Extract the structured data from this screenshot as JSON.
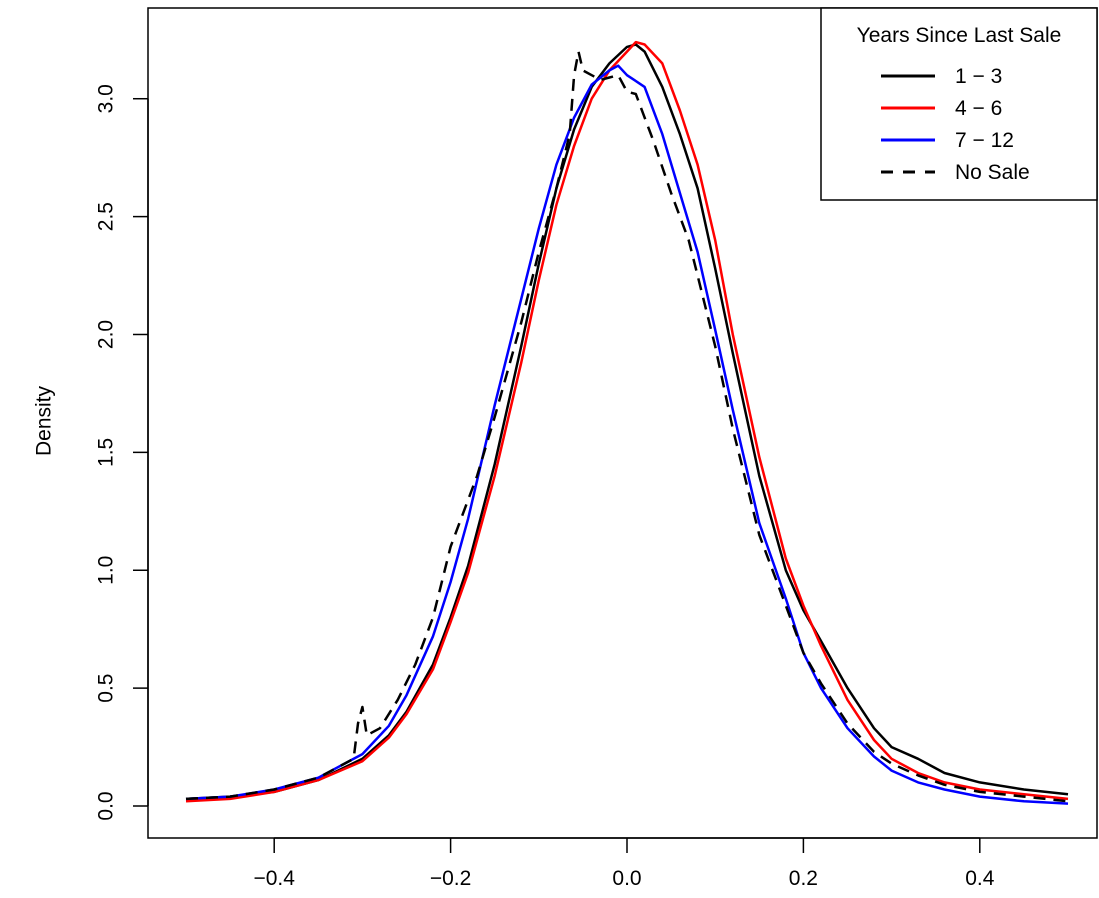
{
  "chart_data": {
    "type": "line",
    "title": "",
    "xlabel": "",
    "ylabel": "Density",
    "xlim": [
      -0.5,
      0.5
    ],
    "ylim": [
      0,
      3.3
    ],
    "x_ticks": [
      -0.4,
      -0.2,
      0.0,
      0.2,
      0.4
    ],
    "x_tick_labels": [
      "−0.4",
      "−0.2",
      "0.0",
      "0.2",
      "0.4"
    ],
    "y_ticks": [
      0.0,
      0.5,
      1.0,
      1.5,
      2.0,
      2.5,
      3.0
    ],
    "y_tick_labels": [
      "0.0",
      "0.5",
      "1.0",
      "1.5",
      "2.0",
      "2.5",
      "3.0"
    ],
    "grid": false,
    "legend": {
      "title": "Years Since Last Sale",
      "placement": "top-right"
    },
    "series": [
      {
        "name": "1 − 3",
        "color": "#000000",
        "dash": "solid",
        "points": [
          [
            -0.5,
            0.03
          ],
          [
            -0.45,
            0.04
          ],
          [
            -0.4,
            0.06
          ],
          [
            -0.35,
            0.11
          ],
          [
            -0.3,
            0.2
          ],
          [
            -0.27,
            0.3
          ],
          [
            -0.25,
            0.4
          ],
          [
            -0.22,
            0.6
          ],
          [
            -0.2,
            0.8
          ],
          [
            -0.18,
            1.02
          ],
          [
            -0.15,
            1.45
          ],
          [
            -0.12,
            1.95
          ],
          [
            -0.1,
            2.3
          ],
          [
            -0.08,
            2.62
          ],
          [
            -0.06,
            2.87
          ],
          [
            -0.04,
            3.05
          ],
          [
            -0.02,
            3.15
          ],
          [
            0.0,
            3.22
          ],
          [
            0.01,
            3.23
          ],
          [
            0.02,
            3.2
          ],
          [
            0.04,
            3.05
          ],
          [
            0.06,
            2.85
          ],
          [
            0.08,
            2.62
          ],
          [
            0.1,
            2.28
          ],
          [
            0.12,
            1.92
          ],
          [
            0.15,
            1.4
          ],
          [
            0.18,
            1.0
          ],
          [
            0.2,
            0.83
          ],
          [
            0.22,
            0.7
          ],
          [
            0.25,
            0.5
          ],
          [
            0.28,
            0.33
          ],
          [
            0.3,
            0.25
          ],
          [
            0.33,
            0.2
          ],
          [
            0.36,
            0.14
          ],
          [
            0.4,
            0.1
          ],
          [
            0.45,
            0.07
          ],
          [
            0.5,
            0.05
          ]
        ]
      },
      {
        "name": "4 − 6",
        "color": "#ff0000",
        "dash": "solid",
        "points": [
          [
            -0.5,
            0.02
          ],
          [
            -0.45,
            0.03
          ],
          [
            -0.4,
            0.06
          ],
          [
            -0.35,
            0.11
          ],
          [
            -0.3,
            0.19
          ],
          [
            -0.27,
            0.29
          ],
          [
            -0.25,
            0.39
          ],
          [
            -0.22,
            0.58
          ],
          [
            -0.2,
            0.78
          ],
          [
            -0.18,
            0.99
          ],
          [
            -0.15,
            1.4
          ],
          [
            -0.12,
            1.88
          ],
          [
            -0.1,
            2.23
          ],
          [
            -0.08,
            2.55
          ],
          [
            -0.06,
            2.8
          ],
          [
            -0.04,
            3.0
          ],
          [
            -0.02,
            3.12
          ],
          [
            0.0,
            3.2
          ],
          [
            0.01,
            3.24
          ],
          [
            0.02,
            3.23
          ],
          [
            0.04,
            3.15
          ],
          [
            0.06,
            2.95
          ],
          [
            0.08,
            2.72
          ],
          [
            0.1,
            2.4
          ],
          [
            0.12,
            2.0
          ],
          [
            0.15,
            1.48
          ],
          [
            0.18,
            1.05
          ],
          [
            0.2,
            0.85
          ],
          [
            0.22,
            0.68
          ],
          [
            0.25,
            0.45
          ],
          [
            0.28,
            0.28
          ],
          [
            0.3,
            0.2
          ],
          [
            0.33,
            0.14
          ],
          [
            0.36,
            0.1
          ],
          [
            0.4,
            0.07
          ],
          [
            0.45,
            0.05
          ],
          [
            0.5,
            0.03
          ]
        ]
      },
      {
        "name": "7 − 12",
        "color": "#0000ff",
        "dash": "solid",
        "points": [
          [
            -0.5,
            0.03
          ],
          [
            -0.45,
            0.04
          ],
          [
            -0.4,
            0.07
          ],
          [
            -0.35,
            0.12
          ],
          [
            -0.3,
            0.22
          ],
          [
            -0.27,
            0.34
          ],
          [
            -0.25,
            0.47
          ],
          [
            -0.22,
            0.72
          ],
          [
            -0.2,
            0.95
          ],
          [
            -0.18,
            1.22
          ],
          [
            -0.15,
            1.7
          ],
          [
            -0.12,
            2.15
          ],
          [
            -0.1,
            2.45
          ],
          [
            -0.08,
            2.72
          ],
          [
            -0.06,
            2.92
          ],
          [
            -0.04,
            3.06
          ],
          [
            -0.02,
            3.12
          ],
          [
            -0.01,
            3.14
          ],
          [
            0.0,
            3.1
          ],
          [
            0.02,
            3.05
          ],
          [
            0.04,
            2.85
          ],
          [
            0.06,
            2.6
          ],
          [
            0.08,
            2.35
          ],
          [
            0.1,
            2.02
          ],
          [
            0.12,
            1.68
          ],
          [
            0.15,
            1.2
          ],
          [
            0.18,
            0.88
          ],
          [
            0.2,
            0.65
          ],
          [
            0.22,
            0.5
          ],
          [
            0.25,
            0.33
          ],
          [
            0.28,
            0.21
          ],
          [
            0.3,
            0.15
          ],
          [
            0.33,
            0.1
          ],
          [
            0.36,
            0.07
          ],
          [
            0.4,
            0.04
          ],
          [
            0.45,
            0.02
          ],
          [
            0.5,
            0.01
          ]
        ]
      },
      {
        "name": "No Sale",
        "color": "#000000",
        "dash": "dashed",
        "points": [
          [
            -0.5,
            0.03
          ],
          [
            -0.45,
            0.04
          ],
          [
            -0.4,
            0.07
          ],
          [
            -0.35,
            0.12
          ],
          [
            -0.31,
            0.2
          ],
          [
            -0.305,
            0.35
          ],
          [
            -0.3,
            0.42
          ],
          [
            -0.295,
            0.3
          ],
          [
            -0.28,
            0.33
          ],
          [
            -0.26,
            0.45
          ],
          [
            -0.24,
            0.6
          ],
          [
            -0.22,
            0.8
          ],
          [
            -0.2,
            1.1
          ],
          [
            -0.19,
            1.2
          ],
          [
            -0.17,
            1.4
          ],
          [
            -0.15,
            1.65
          ],
          [
            -0.12,
            2.05
          ],
          [
            -0.1,
            2.35
          ],
          [
            -0.08,
            2.62
          ],
          [
            -0.065,
            2.85
          ],
          [
            -0.06,
            3.1
          ],
          [
            -0.055,
            3.2
          ],
          [
            -0.05,
            3.12
          ],
          [
            -0.04,
            3.1
          ],
          [
            -0.03,
            3.08
          ],
          [
            -0.02,
            3.09
          ],
          [
            -0.01,
            3.1
          ],
          [
            0.0,
            3.03
          ],
          [
            0.01,
            3.02
          ],
          [
            0.03,
            2.82
          ],
          [
            0.05,
            2.6
          ],
          [
            0.07,
            2.4
          ],
          [
            0.08,
            2.25
          ],
          [
            0.1,
            1.95
          ],
          [
            0.12,
            1.6
          ],
          [
            0.15,
            1.15
          ],
          [
            0.18,
            0.85
          ],
          [
            0.2,
            0.65
          ],
          [
            0.22,
            0.52
          ],
          [
            0.25,
            0.35
          ],
          [
            0.28,
            0.23
          ],
          [
            0.3,
            0.18
          ],
          [
            0.33,
            0.13
          ],
          [
            0.36,
            0.09
          ],
          [
            0.4,
            0.06
          ],
          [
            0.45,
            0.04
          ],
          [
            0.5,
            0.02
          ]
        ]
      }
    ]
  }
}
